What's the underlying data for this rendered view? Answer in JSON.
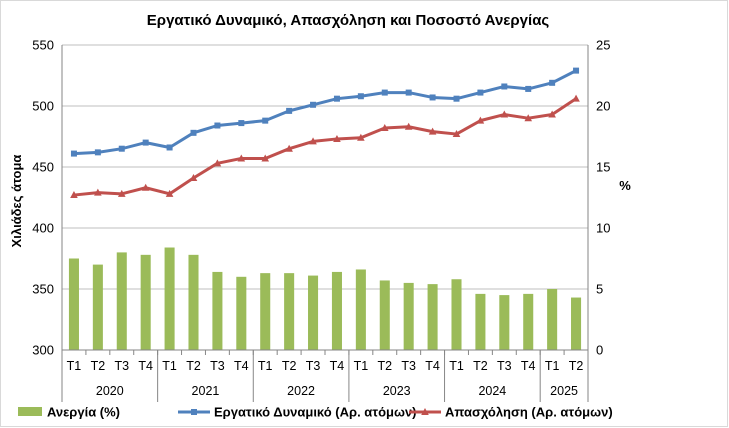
{
  "chart_data": {
    "type": "bar+line",
    "title": "Εργατικό Δυναμικό, Απασχόληση και Ποσοστό Ανεργίας",
    "ylabel": "Χιλιάδες άτομα",
    "y2label": "%",
    "ylim": [
      300,
      550
    ],
    "y2lim": [
      0,
      25
    ],
    "yticks": [
      "300",
      "350",
      "400",
      "450",
      "500",
      "550"
    ],
    "y2ticks": [
      "0",
      "5",
      "10",
      "15",
      "20",
      "25"
    ],
    "grid": true,
    "legend_position": "bottom",
    "quarters": [
      "T1",
      "T2",
      "T3",
      "T4",
      "T1",
      "T2",
      "T3",
      "T4",
      "T1",
      "T2",
      "T3",
      "T4",
      "T1",
      "T2",
      "T3",
      "T4",
      "T1",
      "T2",
      "T3",
      "T4",
      "T1",
      "T2"
    ],
    "years": [
      {
        "label": "2020",
        "count": 4
      },
      {
        "label": "2021",
        "count": 4
      },
      {
        "label": "2022",
        "count": 4
      },
      {
        "label": "2023",
        "count": 4
      },
      {
        "label": "2024",
        "count": 4
      },
      {
        "label": "2025",
        "count": 2
      }
    ],
    "series": [
      {
        "name": "Ανεργία (%)",
        "kind": "bar",
        "axis": "right",
        "color": "#9bbb59",
        "values": [
          7.5,
          7.0,
          8.0,
          7.8,
          8.4,
          7.8,
          6.4,
          6.0,
          6.3,
          6.3,
          6.1,
          6.4,
          6.6,
          5.7,
          5.5,
          5.4,
          5.8,
          4.6,
          4.5,
          4.6,
          5.0,
          4.3
        ]
      },
      {
        "name": "Εργατικό Δυναμικό (Αρ. ατόμων)",
        "kind": "line",
        "axis": "left",
        "color": "#4f81bd",
        "marker": "square",
        "values": [
          461,
          462,
          465,
          470,
          466,
          478,
          484,
          486,
          488,
          496,
          501,
          506,
          508,
          511,
          511,
          507,
          506,
          511,
          516,
          514,
          519,
          529
        ]
      },
      {
        "name": "Απασχόληση (Αρ. ατόμων)",
        "kind": "line",
        "axis": "left",
        "color": "#c0504d",
        "marker": "triangle",
        "values": [
          427,
          429,
          428,
          433,
          428,
          441,
          453,
          457,
          457,
          465,
          471,
          473,
          474,
          482,
          483,
          479,
          477,
          488,
          493,
          490,
          493,
          506
        ]
      }
    ]
  }
}
